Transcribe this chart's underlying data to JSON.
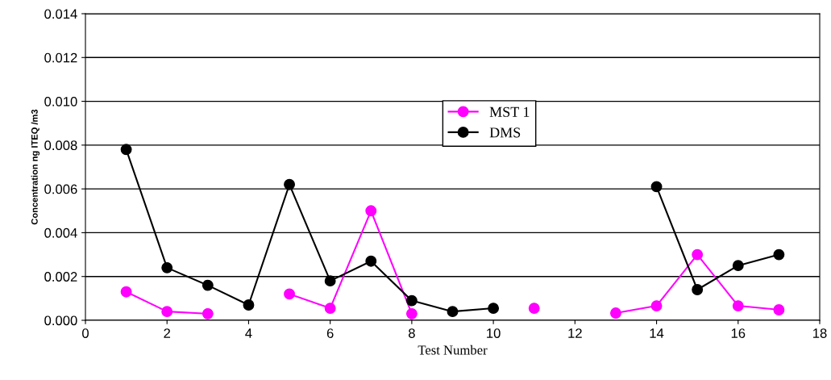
{
  "chart_data": {
    "type": "line",
    "xlabel": "Test Number",
    "ylabel": "Concentration ng ITEQ /m3",
    "x": [
      1,
      2,
      3,
      4,
      5,
      6,
      7,
      8,
      9,
      10,
      11,
      12,
      13,
      14,
      15,
      16,
      17
    ],
    "series": [
      {
        "name": "MST 1",
        "color": "#ff00ff",
        "values": [
          0.0013,
          0.0004,
          0.0003,
          null,
          0.0012,
          0.00055,
          0.005,
          0.0003,
          null,
          null,
          0.00055,
          null,
          0.00033,
          0.00066,
          0.003,
          0.00066,
          0.00048
        ]
      },
      {
        "name": "DMS",
        "color": "#000000",
        "values": [
          0.0078,
          0.0024,
          0.0016,
          0.0007,
          0.0062,
          0.0018,
          0.0027,
          0.0009,
          0.0004,
          0.00055,
          null,
          null,
          null,
          0.0061,
          0.0014,
          0.0025,
          0.003
        ]
      }
    ],
    "xlim": [
      0,
      18
    ],
    "xticks": [
      0,
      2,
      4,
      6,
      8,
      10,
      12,
      14,
      16,
      18
    ],
    "ylim": [
      0,
      0.014
    ],
    "yticks": [
      {
        "value": 0,
        "label": "0.000"
      },
      {
        "value": 0.002,
        "label": "0.002"
      },
      {
        "value": 0.004,
        "label": "0.004"
      },
      {
        "value": 0.006,
        "label": "0.006"
      },
      {
        "value": 0.008,
        "label": "0.008"
      },
      {
        "value": 0.01,
        "label": "0.010"
      },
      {
        "value": 0.012,
        "label": "0.012"
      },
      {
        "value": 0.014,
        "label": "0.014"
      }
    ],
    "grid": "y",
    "legend": "top",
    "marker": "circle",
    "line_style": "solid"
  }
}
